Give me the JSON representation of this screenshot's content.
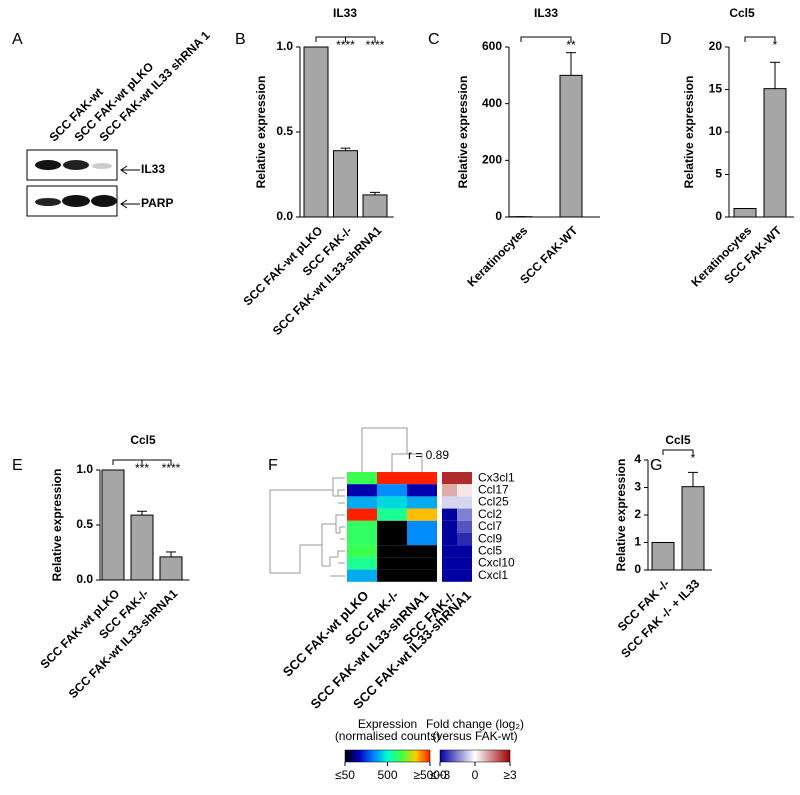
{
  "blot": {
    "panel": "A",
    "lanes": [
      "SCC FAK-wt",
      "SCC FAK-wt pLKO",
      "SCC FAK-wt IL33 shRNA 1"
    ],
    "bands": [
      "IL33",
      "PARP"
    ]
  },
  "chart_data": [
    {
      "type": "bar",
      "panel": "B",
      "title": "IL33",
      "ylabel": "Relative expression",
      "categories": [
        "SCC FAK-wt pLKO",
        "SCC FAK-/-",
        "SCC FAK-wt IL33-shRNA1"
      ],
      "values": [
        1.0,
        0.39,
        0.13
      ],
      "errors": [
        0,
        0.015,
        0.015
      ],
      "significance": [
        "****",
        "****"
      ],
      "color": "#a6a6a6",
      "ylim": [
        0,
        1.0
      ],
      "yticks": [
        {
          "value": 0,
          "label": "0.0"
        },
        0.5,
        {
          "value": 1.0,
          "label": "1.0"
        }
      ]
    },
    {
      "type": "bar",
      "panel": "C",
      "title": "IL33",
      "ylabel": "Relative expression",
      "categories": [
        "Keratinocytes",
        "SCC FAK-WT"
      ],
      "values": [
        1,
        500
      ],
      "errors": [
        0,
        80
      ],
      "significance": [
        "**"
      ],
      "color": "#a6a6a6",
      "ylim": [
        0,
        600
      ],
      "yticks": [
        0,
        200,
        400,
        600
      ]
    },
    {
      "type": "bar",
      "panel": "D",
      "title": "Ccl5",
      "ylabel": "Relative expression",
      "categories": [
        "Keratinocytes",
        "SCC FAK-WT"
      ],
      "values": [
        1,
        15.1
      ],
      "errors": [
        0,
        3.1
      ],
      "significance": [
        "*"
      ],
      "color": "#a6a6a6",
      "ylim": [
        0,
        20
      ],
      "yticks": [
        0,
        5,
        10,
        15,
        20
      ]
    },
    {
      "type": "bar",
      "panel": "E",
      "title": "Ccl5",
      "ylabel": "Relative expression",
      "categories": [
        "SCC FAK-wt pLKO",
        "SCC FAK-/-",
        "SCC FAK-wt IL33-shRNA1"
      ],
      "values": [
        1.0,
        0.59,
        0.21
      ],
      "errors": [
        0,
        0.035,
        0.045
      ],
      "significance": [
        "***",
        "****"
      ],
      "color": "#a6a6a6",
      "ylim": [
        0,
        1.0
      ],
      "yticks": [
        {
          "value": 0,
          "label": "0.0"
        },
        0.5,
        {
          "value": 1.0,
          "label": "1.0"
        }
      ]
    },
    {
      "type": "bar",
      "panel": "G",
      "title": "Ccl5",
      "ylabel": "Relative expression",
      "categories": [
        "SCC FAK -/-",
        "SCC FAK -/- + IL33"
      ],
      "values": [
        1,
        3.03
      ],
      "errors": [
        0,
        0.52
      ],
      "significance": [
        "*"
      ],
      "color": "#a6a6a6",
      "ylim": [
        0,
        4
      ],
      "yticks": [
        0,
        1,
        2,
        3,
        4
      ]
    },
    {
      "type": "heatmap",
      "panel": "F",
      "annotation": "r = 0.89",
      "rows": [
        "Cx3cl1",
        "Ccl17",
        "Ccl25",
        "Ccl2",
        "Ccl7",
        "Ccl9",
        "Ccl5",
        "Cxcl10",
        "Cxcl1"
      ],
      "maps": [
        {
          "columns": [
            "SCC FAK-wt pLKO",
            "SCC FAK-/-",
            "SCC FAK-wt IL33-shRNA1"
          ],
          "values": [
            [
              1000,
              5000,
              5000
            ],
            [
              100,
              250,
              100
            ],
            [
              300,
              400,
              300
            ],
            [
              5000,
              700,
              2500
            ],
            [
              900,
              50,
              250
            ],
            [
              900,
              50,
              250
            ],
            [
              1000,
              50,
              50
            ],
            [
              700,
              50,
              50
            ],
            [
              300,
              50,
              50
            ]
          ],
          "colorbar_title": [
            "Expression",
            "(normalised counts)"
          ],
          "log": true,
          "clim": [
            50,
            5000
          ],
          "cticks": [
            {
              "value": 50,
              "label": "≤50"
            },
            500,
            {
              "value": 5000,
              "label": "≥5000"
            }
          ],
          "colors": [
            "#000000",
            "#0000c0",
            "#0080ff",
            "#00ffd0",
            "#40ff40",
            "#ffd000",
            "#ff2000"
          ]
        },
        {
          "columns": [
            "SCC FAK-/-",
            "SCC FAK-wt IL33-shRNA1"
          ],
          "values": [
            [
              2.5,
              2.5
            ],
            [
              1,
              0.3
            ],
            [
              -0.5,
              -0.5
            ],
            [
              -3,
              -1.5
            ],
            [
              -3,
              -2
            ],
            [
              -3,
              -2.5
            ],
            [
              -3,
              -3
            ],
            [
              -3,
              -3
            ],
            [
              -3,
              -3
            ]
          ],
          "colorbar_title": [
            "Fold change (log₂)",
            "(versus FAK-wt)"
          ],
          "log": false,
          "clim": [
            -3,
            3
          ],
          "cticks": [
            {
              "value": -3,
              "label": "≤−3"
            },
            0,
            {
              "value": 3,
              "label": "≥3"
            }
          ],
          "colors": [
            "#0000a0",
            "#ffffff",
            "#a00000"
          ]
        }
      ]
    }
  ]
}
